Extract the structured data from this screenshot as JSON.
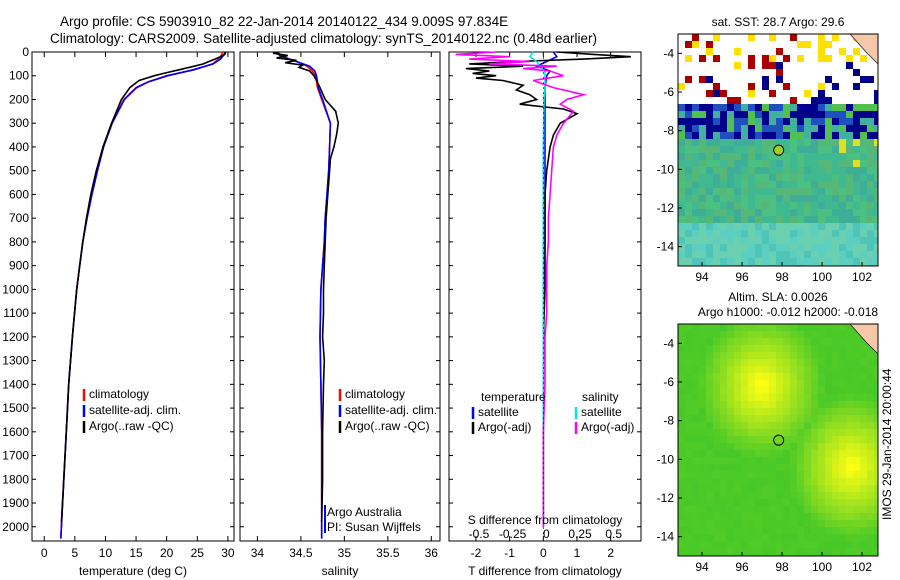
{
  "title": {
    "line1": "Argo profile: CS 5903910_82 22-Jan-2014 20140122_434 9.009S 97.834E",
    "line2": "Climatology: CARS2009. Satellite-adjusted climatology: synTS_20140122.nc (0.48d earlier)"
  },
  "colors": {
    "climatology": "#ff0000",
    "satellite": "#0000ff",
    "argo": "#000000",
    "sal_satellite": "#00e5e5",
    "sal_argo": "#ff00ff"
  },
  "stamp": "IMOS 29-Jan-2014 20:00:44",
  "chart_data": [
    {
      "type": "line",
      "id": "temperature-profile",
      "xlabel": "temperature (deg C)",
      "xlim": [
        -2,
        31
      ],
      "ylim": [
        0,
        2060
      ],
      "xticks": [
        0,
        5,
        10,
        15,
        20,
        25,
        30
      ],
      "yticks": [
        0,
        100,
        200,
        300,
        400,
        500,
        600,
        700,
        800,
        900,
        1000,
        1100,
        1200,
        1300,
        1400,
        1500,
        1600,
        1700,
        1800,
        1900,
        2000
      ],
      "legend": [
        "climatology",
        "satellite-adj. clim.",
        "Argo(..raw -QC)"
      ],
      "series": [
        {
          "name": "climatology",
          "depth": [
            0,
            10,
            30,
            50,
            75,
            100,
            125,
            150,
            200,
            250,
            300,
            400,
            500,
            600,
            700,
            800,
            900,
            1000,
            1200,
            1400,
            1600,
            1800,
            2000,
            2050
          ],
          "values": [
            29.2,
            29.0,
            28.5,
            27.5,
            24.5,
            20,
            17,
            15,
            13,
            12,
            11,
            9.6,
            8.6,
            7.7,
            6.9,
            6.3,
            5.8,
            5.3,
            4.6,
            4.0,
            3.6,
            3.2,
            2.8,
            2.7
          ]
        },
        {
          "name": "satellite",
          "depth": [
            0,
            10,
            30,
            50,
            75,
            100,
            125,
            150,
            200,
            250,
            300,
            400,
            500,
            600,
            700,
            800,
            900,
            1000,
            1200,
            1400,
            1600,
            1800,
            2000,
            2050
          ],
          "values": [
            29.6,
            29.4,
            28.8,
            27.6,
            24.3,
            20.2,
            17.1,
            15.1,
            13.1,
            12.1,
            11.1,
            9.7,
            8.7,
            7.8,
            7.0,
            6.3,
            5.8,
            5.3,
            4.6,
            4.0,
            3.6,
            3.2,
            2.8,
            2.7
          ]
        },
        {
          "name": "Argo",
          "depth": [
            0,
            10,
            20,
            30,
            40,
            50,
            60,
            75,
            90,
            100,
            120,
            150,
            200,
            250,
            300,
            400,
            500,
            600,
            700,
            800,
            900,
            1000,
            1200,
            1400,
            1600,
            1800,
            1980
          ],
          "values": [
            29.6,
            29.5,
            28.8,
            27.9,
            26.9,
            26.0,
            24.5,
            22.0,
            19.5,
            18.0,
            15.5,
            14.0,
            12.6,
            11.8,
            11.0,
            9.6,
            8.5,
            7.6,
            6.9,
            6.3,
            5.8,
            5.3,
            4.6,
            4.0,
            3.6,
            3.2,
            2.8
          ]
        }
      ]
    },
    {
      "type": "line",
      "id": "salinity-profile",
      "xlabel": "salinity",
      "xlim": [
        33.8,
        36.1
      ],
      "ylim": [
        0,
        2060
      ],
      "xticks": [
        34,
        34.5,
        35,
        35.5,
        36
      ],
      "legend": [
        "climatology",
        "satellite-adj. clim.",
        "Argo(..raw -QC)"
      ],
      "annotation": [
        "Argo Australia",
        "PI: Susan Wijffels"
      ],
      "series": [
        {
          "name": "climatology",
          "depth": [
            0,
            20,
            40,
            60,
            80,
            100,
            150,
            200,
            300,
            400,
            500,
            600,
            700,
            800,
            900,
            1000,
            1200,
            1400,
            1600,
            1800,
            2000,
            2050
          ],
          "values": [
            34.22,
            34.3,
            34.45,
            34.57,
            34.63,
            34.67,
            34.69,
            34.74,
            34.84,
            34.83,
            34.82,
            34.8,
            34.78,
            34.77,
            34.75,
            34.73,
            34.72,
            34.73,
            34.74,
            34.74,
            34.74,
            34.74
          ]
        },
        {
          "name": "satellite",
          "depth": [
            0,
            20,
            40,
            60,
            80,
            100,
            150,
            200,
            300,
            400,
            500,
            600,
            700,
            800,
            900,
            1000,
            1200,
            1400,
            1600,
            1800,
            2000,
            2050
          ],
          "values": [
            34.2,
            34.28,
            34.45,
            34.6,
            34.66,
            34.68,
            34.7,
            34.75,
            34.84,
            34.83,
            34.82,
            34.8,
            34.78,
            34.77,
            34.75,
            34.73,
            34.72,
            34.73,
            34.74,
            34.74,
            34.74,
            34.74
          ]
        },
        {
          "name": "Argo",
          "depth": [
            0,
            5,
            15,
            25,
            35,
            45,
            55,
            65,
            80,
            100,
            120,
            150,
            200,
            250,
            300,
            350,
            400,
            450,
            500,
            600,
            700,
            800,
            900,
            1000,
            1100,
            1200,
            1300,
            1400,
            1600,
            1800,
            1980
          ],
          "values": [
            34.25,
            34.18,
            34.35,
            34.22,
            34.45,
            34.32,
            34.52,
            34.48,
            34.6,
            34.65,
            34.68,
            34.72,
            34.78,
            34.9,
            34.93,
            34.91,
            34.88,
            34.84,
            34.83,
            34.81,
            34.79,
            34.78,
            34.77,
            34.76,
            34.76,
            34.75,
            34.77,
            34.76,
            34.75,
            34.75,
            34.74
          ]
        }
      ]
    },
    {
      "type": "line",
      "id": "difference-profile",
      "xlabel": "T difference from climatology",
      "toplabel": "S difference from climatology",
      "xlim": [
        -2.8,
        2.9
      ],
      "ylim": [
        0,
        2060
      ],
      "xticks": [
        -2,
        -1,
        0,
        1,
        2
      ],
      "s_xticks": [
        "-0.5",
        "-0.25",
        "0",
        "0.25",
        "0.5"
      ],
      "s_xtick_pos": [
        -2,
        -1,
        0,
        1,
        2
      ],
      "legend": {
        "temperature_heading": "temperature",
        "salinity_heading": "salinity",
        "entries": [
          "satellite",
          "Argo(-adj)",
          "satellite",
          "Argo(-adj)"
        ]
      },
      "series": [
        {
          "name": "T satellite",
          "depth": [
            0,
            20,
            40,
            60,
            80,
            100,
            150,
            200,
            400,
            600,
            800,
            1000,
            1400,
            1800,
            2000
          ],
          "values": [
            0.3,
            0.4,
            0.1,
            -0.2,
            0.2,
            0.1,
            0.05,
            0.05,
            0.05,
            0.05,
            0.05,
            0.02,
            0.0,
            0.0,
            0.0
          ]
        },
        {
          "name": "T Argo",
          "depth": [
            0,
            10,
            20,
            30,
            40,
            50,
            60,
            70,
            80,
            90,
            100,
            110,
            120,
            140,
            160,
            180,
            200,
            220,
            240,
            260,
            300,
            350,
            400,
            500,
            600,
            700,
            800,
            900,
            1000,
            1200,
            1400,
            1600,
            1800,
            2000
          ],
          "values": [
            0.4,
            1.5,
            2.6,
            1.2,
            -0.8,
            -2.2,
            -0.6,
            -2.3,
            -1.6,
            -2.1,
            -1.4,
            -2.0,
            -1.2,
            -0.6,
            -0.8,
            -0.4,
            -0.2,
            -0.7,
            0.6,
            1.0,
            0.5,
            0.3,
            0.2,
            0.1,
            0.05,
            0.05,
            0.05,
            0.05,
            0.05,
            0.0,
            0.0,
            0.0,
            0.0,
            0.0
          ]
        },
        {
          "name": "S satellite",
          "depth": [
            0,
            20,
            40,
            60,
            80,
            100,
            150,
            200,
            400,
            600,
            800,
            1000,
            1200,
            1400,
            1600,
            1800,
            2000
          ],
          "values": [
            -0.3,
            -0.4,
            -0.2,
            -0.1,
            0.05,
            0.05,
            0.05,
            0.02,
            0.0,
            0.0,
            0.0,
            0.0,
            0.0,
            0.0,
            0.0,
            0.0,
            0.0
          ]
        },
        {
          "name": "S Argo",
          "depth": [
            0,
            10,
            20,
            30,
            40,
            50,
            60,
            70,
            80,
            100,
            120,
            150,
            180,
            200,
            220,
            250,
            300,
            350,
            400,
            500,
            600,
            700,
            800,
            900,
            1000,
            1100,
            1200,
            1300,
            1400,
            1600,
            1800,
            2000
          ],
          "values": [
            -1.4,
            -2.6,
            -1.0,
            -2.2,
            -0.4,
            -1.6,
            0.4,
            -0.6,
            0.2,
            0.6,
            -0.3,
            0.3,
            1.2,
            0.7,
            0.5,
            0.9,
            0.6,
            0.4,
            0.3,
            0.25,
            0.2,
            0.15,
            0.15,
            0.1,
            0.1,
            0.1,
            0.05,
            0.05,
            0.05,
            0.0,
            0.0,
            0.0
          ]
        }
      ]
    },
    {
      "type": "heatmap",
      "id": "sst-map",
      "title": "sat. SST: 28.7  Argo: 29.6",
      "xticks": [
        94,
        96,
        98,
        100,
        102
      ],
      "yticks": [
        -4,
        -6,
        -8,
        -10,
        -12,
        -14
      ],
      "xlim": [
        92.8,
        102.8
      ],
      "ylim": [
        -15,
        -3
      ],
      "argo_marker": [
        97.834,
        -9.009
      ]
    },
    {
      "type": "heatmap",
      "id": "sla-map",
      "title": [
        "Altim. SLA: 0.0026",
        "Argo h1000: -0.012  h2000: -0.018"
      ],
      "xticks": [
        94,
        96,
        98,
        100,
        102
      ],
      "yticks": [
        -4,
        -6,
        -8,
        -10,
        -12,
        -14
      ],
      "xlim": [
        92.8,
        102.8
      ],
      "ylim": [
        -15,
        -3
      ],
      "argo_marker": [
        97.834,
        -9.009
      ]
    }
  ]
}
